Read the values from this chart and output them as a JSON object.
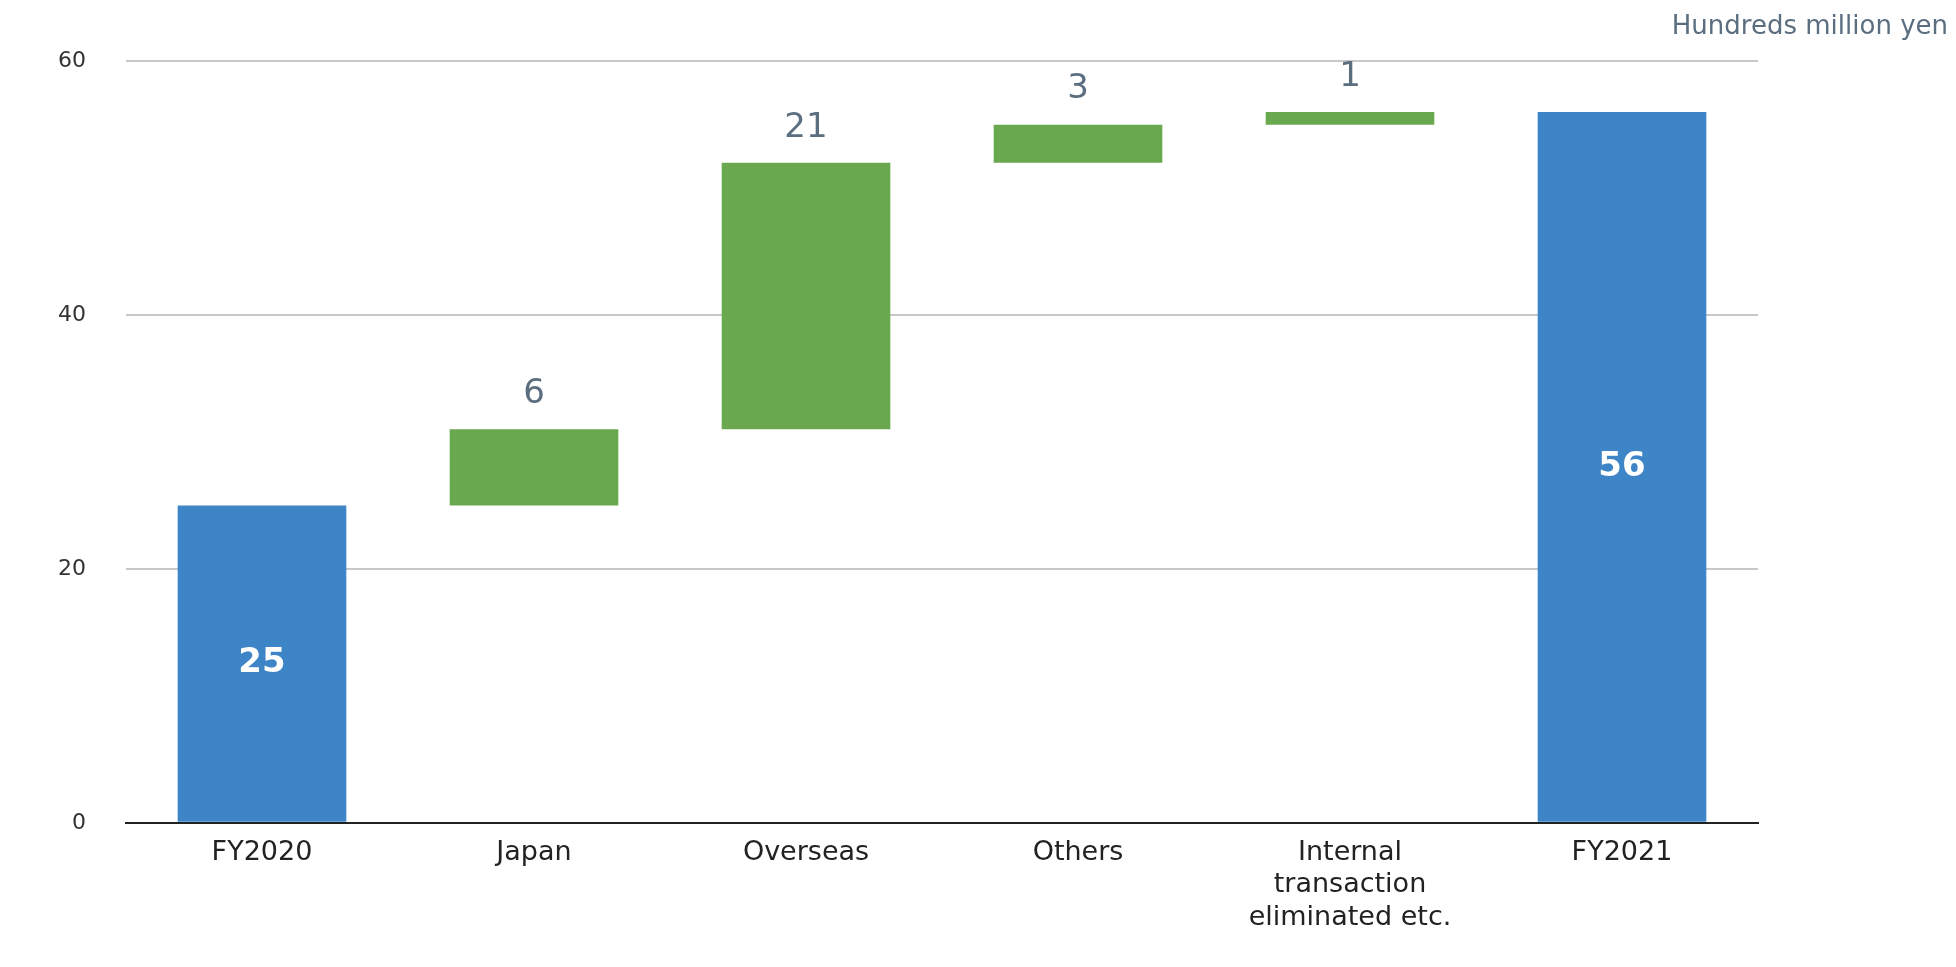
{
  "chart_data": {
    "type": "bar",
    "ylabel": "Hundreds million yen",
    "categories": [
      "FY2020",
      "Japan",
      "Overseas",
      "Others",
      "Internal transaction eliminated etc.",
      "FY2021"
    ],
    "values": [
      25,
      6,
      21,
      3,
      1,
      56
    ],
    "base": [
      0,
      25,
      31,
      52,
      55,
      0
    ],
    "colors": [
      "#3d85c6",
      "#6aa84f",
      "#6aa84f",
      "#6aa84f",
      "#6aa84f",
      "#3d85c6"
    ],
    "ylim": [
      0,
      60
    ],
    "yticks": [
      0,
      20,
      40,
      60
    ],
    "grid": "y",
    "data_labels": true,
    "legend": false
  }
}
